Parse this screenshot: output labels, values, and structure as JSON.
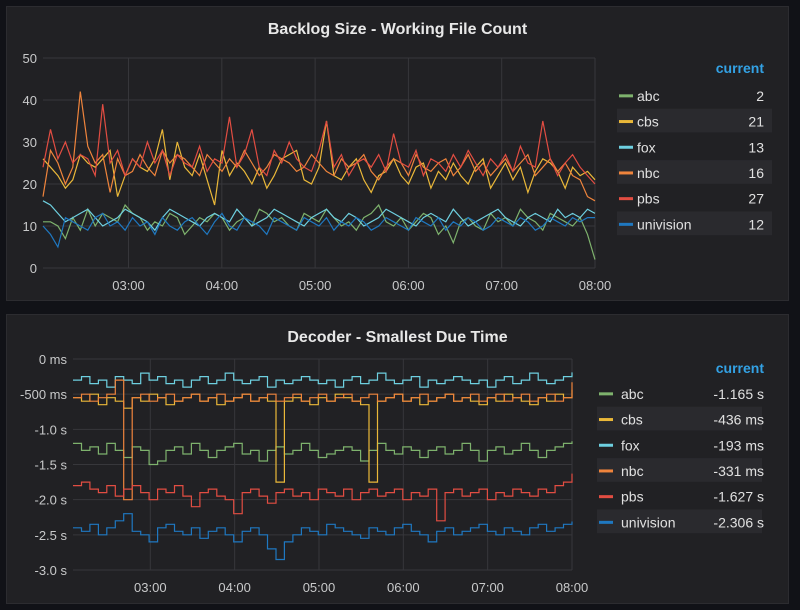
{
  "legend_header": "current",
  "colors": {
    "abc": "#7eb26d",
    "cbs": "#eab839",
    "fox": "#6ed0e0",
    "nbc": "#ef843c",
    "pbs": "#e24d42",
    "univision": "#1f78c1"
  },
  "chart_data": [
    {
      "type": "line",
      "title": "Backlog Size - Working File Count",
      "x_ticks": [
        "03:00",
        "04:00",
        "05:00",
        "06:00",
        "07:00",
        "08:00"
      ],
      "y_ticks": [
        "50",
        "40",
        "30",
        "20",
        "10",
        "0"
      ],
      "ylim": [
        0,
        50
      ],
      "xlim": [
        "02:05",
        "08:00"
      ],
      "grid": true,
      "legend_placement": "right",
      "series": [
        {
          "name": "abc",
          "current": "2",
          "values": [
            11,
            11,
            10,
            7,
            12,
            9,
            14,
            10,
            13,
            12,
            11,
            15,
            13,
            12,
            9,
            11,
            10,
            13,
            12,
            8,
            10,
            12,
            11,
            13,
            12,
            9,
            11,
            12,
            10,
            14,
            13,
            11,
            12,
            10,
            9,
            13,
            12,
            11,
            14,
            12,
            10,
            11,
            9,
            12,
            13,
            15,
            11,
            10,
            12,
            9,
            11,
            13,
            12,
            8,
            10,
            6,
            11,
            12,
            10,
            9,
            13,
            11,
            12,
            10,
            14,
            12,
            11,
            9,
            13,
            12,
            11,
            10,
            12,
            8,
            2
          ]
        },
        {
          "name": "cbs",
          "current": "21",
          "values": [
            26,
            24,
            22,
            19,
            21,
            27,
            25,
            24,
            26,
            28,
            17,
            22,
            26,
            24,
            23,
            26,
            33,
            21,
            30,
            24,
            22,
            27,
            21,
            15,
            28,
            22,
            25,
            23,
            20,
            24,
            19,
            22,
            26,
            27,
            28,
            21,
            20,
            24,
            35,
            22,
            21,
            24,
            26,
            21,
            18,
            22,
            23,
            26,
            22,
            20,
            24,
            25,
            19,
            23,
            21,
            25,
            22,
            20,
            24,
            26,
            19,
            22,
            25,
            21,
            24,
            18,
            23,
            26,
            25,
            23,
            19,
            24,
            22,
            23,
            21
          ]
        },
        {
          "name": "fox",
          "current": "13",
          "values": [
            16,
            15,
            13,
            11,
            12,
            13,
            14,
            12,
            10,
            11,
            12,
            14,
            13,
            12,
            11,
            9,
            12,
            14,
            13,
            12,
            11,
            10,
            12,
            13,
            12,
            11,
            14,
            12,
            10,
            11,
            12,
            14,
            13,
            12,
            11,
            10,
            12,
            13,
            14,
            12,
            11,
            13,
            12,
            10,
            11,
            12,
            14,
            13,
            12,
            11,
            10,
            12,
            13,
            12,
            11,
            14,
            12,
            10,
            11,
            12,
            13,
            14,
            12,
            11,
            10,
            12,
            13,
            12,
            11,
            14,
            12,
            13,
            12,
            14,
            13
          ]
        },
        {
          "name": "nbc",
          "current": "16",
          "values": [
            17,
            28,
            25,
            20,
            24,
            42,
            29,
            25,
            27,
            18,
            26,
            22,
            23,
            27,
            24,
            22,
            28,
            25,
            27,
            26,
            24,
            22,
            27,
            25,
            23,
            26,
            24,
            28,
            25,
            22,
            24,
            27,
            26,
            25,
            23,
            24,
            27,
            25,
            23,
            22,
            26,
            24,
            25,
            27,
            23,
            21,
            24,
            26,
            25,
            22,
            27,
            24,
            23,
            25,
            26,
            22,
            24,
            27,
            23,
            25,
            22,
            24,
            26,
            23,
            25,
            27,
            22,
            24,
            26,
            23,
            25,
            22,
            21,
            17,
            16
          ]
        },
        {
          "name": "pbs",
          "current": "27",
          "values": [
            24,
            33,
            26,
            30,
            25,
            27,
            26,
            22,
            39,
            25,
            28,
            22,
            26,
            24,
            30,
            25,
            28,
            22,
            27,
            25,
            24,
            29,
            23,
            26,
            25,
            36,
            24,
            27,
            33,
            24,
            22,
            28,
            25,
            30,
            26,
            24,
            23,
            28,
            35,
            24,
            27,
            22,
            25,
            26,
            24,
            27,
            23,
            32,
            25,
            24,
            28,
            22,
            26,
            25,
            23,
            27,
            24,
            28,
            25,
            22,
            26,
            24,
            27,
            23,
            29,
            25,
            24,
            35,
            26,
            22,
            25,
            27,
            24,
            22,
            20
          ]
        },
        {
          "name": "univision",
          "current": "12",
          "values": [
            10,
            8,
            5,
            12,
            11,
            10,
            9,
            12,
            13,
            10,
            11,
            9,
            12,
            10,
            11,
            8,
            12,
            10,
            9,
            11,
            12,
            10,
            8,
            11,
            13,
            10,
            9,
            12,
            11,
            10,
            8,
            12,
            11,
            10,
            9,
            12,
            11,
            10,
            12,
            9,
            11,
            10,
            12,
            11,
            9,
            10,
            12,
            11,
            10,
            9,
            12,
            11,
            10,
            12,
            9,
            11,
            10,
            12,
            11,
            9,
            10,
            12,
            11,
            10,
            12,
            11,
            9,
            10,
            12,
            11,
            10,
            12,
            11,
            12,
            12
          ]
        }
      ]
    },
    {
      "type": "line",
      "title": "Decoder - Smallest Due Time",
      "x_ticks": [
        "03:00",
        "04:00",
        "05:00",
        "06:00",
        "07:00",
        "08:00"
      ],
      "y_ticks": [
        "0 ms",
        "-500 ms",
        "-1.0 s",
        "-1.5 s",
        "-2.0 s",
        "-2.5 s",
        "-3.0 s"
      ],
      "ylim": [
        -3.0,
        0
      ],
      "xlim": [
        "02:05",
        "08:00"
      ],
      "grid": true,
      "step": true,
      "legend_placement": "right",
      "series": [
        {
          "name": "abc",
          "current": "-1.165 s",
          "values": [
            -1.2,
            -1.3,
            -1.25,
            -1.35,
            -1.2,
            -1.3,
            -1.4,
            -1.25,
            -1.3,
            -1.5,
            -1.45,
            -1.3,
            -1.25,
            -1.35,
            -1.2,
            -1.3,
            -1.4,
            -1.3,
            -1.25,
            -1.2,
            -1.35,
            -1.3,
            -1.45,
            -1.3,
            -1.25,
            -1.35,
            -1.3,
            -1.2,
            -1.3,
            -1.4,
            -1.35,
            -1.3,
            -1.25,
            -1.3,
            -1.45,
            -1.3,
            -1.2,
            -1.3,
            -1.35,
            -1.25,
            -1.3,
            -1.4,
            -1.3,
            -1.25,
            -1.35,
            -1.3,
            -1.2,
            -1.3,
            -1.45,
            -1.3,
            -1.25,
            -1.35,
            -1.3,
            -1.2,
            -1.3,
            -1.4,
            -1.3,
            -1.25,
            -1.2,
            -1.17
          ]
        },
        {
          "name": "cbs",
          "current": "-436 ms",
          "values": [
            -0.55,
            -0.6,
            -0.5,
            -0.65,
            -0.55,
            -0.6,
            -0.7,
            -0.55,
            -0.6,
            -0.5,
            -0.55,
            -0.65,
            -0.6,
            -0.55,
            -0.5,
            -0.6,
            -0.55,
            -0.65,
            -0.6,
            -0.55,
            -0.5,
            -0.6,
            -0.55,
            -0.6,
            -1.75,
            -0.6,
            -0.55,
            -0.6,
            -0.65,
            -0.55,
            -0.6,
            -0.5,
            -0.55,
            -0.6,
            -0.65,
            -1.75,
            -0.6,
            -0.55,
            -0.5,
            -0.6,
            -0.55,
            -0.65,
            -0.6,
            -0.55,
            -0.5,
            -0.6,
            -0.55,
            -0.6,
            -0.65,
            -0.55,
            -0.6,
            -0.5,
            -0.55,
            -0.6,
            -0.65,
            -0.55,
            -0.6,
            -0.5,
            -0.55,
            -0.44
          ]
        },
        {
          "name": "fox",
          "current": "-193 ms",
          "values": [
            -0.3,
            -0.25,
            -0.35,
            -0.3,
            -0.4,
            -0.25,
            -0.3,
            -0.35,
            -0.2,
            -0.3,
            -0.25,
            -0.35,
            -0.3,
            -0.4,
            -0.3,
            -0.25,
            -0.35,
            -0.3,
            -0.2,
            -0.3,
            -0.35,
            -0.3,
            -0.25,
            -0.4,
            -0.3,
            -0.35,
            -0.3,
            -0.25,
            -0.3,
            -0.35,
            -0.3,
            -0.4,
            -0.3,
            -0.25,
            -0.35,
            -0.3,
            -0.2,
            -0.3,
            -0.35,
            -0.3,
            -0.25,
            -0.4,
            -0.3,
            -0.35,
            -0.3,
            -0.25,
            -0.3,
            -0.35,
            -0.3,
            -0.4,
            -0.3,
            -0.25,
            -0.35,
            -0.3,
            -0.2,
            -0.3,
            -0.35,
            -0.3,
            -0.25,
            -0.19
          ]
        },
        {
          "name": "nbc",
          "current": "-331 ms",
          "values": [
            -0.55,
            -0.5,
            -0.6,
            -0.55,
            -0.5,
            -0.3,
            -2.0,
            -0.55,
            -0.5,
            -0.6,
            -0.55,
            -0.5,
            -0.6,
            -0.55,
            -0.5,
            -0.6,
            -0.55,
            -0.5,
            -0.6,
            -0.55,
            -0.5,
            -0.6,
            -0.55,
            -0.5,
            -0.6,
            -0.55,
            -0.5,
            -0.6,
            -0.55,
            -0.5,
            -0.6,
            -0.55,
            -0.5,
            -0.6,
            -0.55,
            -0.5,
            -0.6,
            -0.55,
            -0.5,
            -0.6,
            -0.55,
            -0.5,
            -0.6,
            -0.55,
            -0.5,
            -0.6,
            -0.55,
            -0.5,
            -0.6,
            -0.55,
            -0.5,
            -0.6,
            -0.55,
            -0.5,
            -0.6,
            -0.55,
            -0.5,
            -0.6,
            -0.55,
            -0.33
          ]
        },
        {
          "name": "pbs",
          "current": "-1.627 s",
          "values": [
            -1.8,
            -1.75,
            -1.85,
            -1.9,
            -1.8,
            -1.95,
            -1.85,
            -1.8,
            -1.9,
            -2.0,
            -1.85,
            -1.9,
            -1.8,
            -1.95,
            -2.1,
            -1.9,
            -1.85,
            -1.95,
            -2.0,
            -2.2,
            -1.9,
            -1.85,
            -1.95,
            -2.05,
            -1.9,
            -1.85,
            -1.95,
            -1.9,
            -2.0,
            -1.85,
            -1.9,
            -1.95,
            -1.85,
            -2.0,
            -1.9,
            -1.85,
            -1.95,
            -1.9,
            -1.85,
            -2.0,
            -1.9,
            -1.95,
            -1.85,
            -2.3,
            -1.9,
            -1.85,
            -1.95,
            -1.9,
            -1.85,
            -2.0,
            -1.9,
            -1.95,
            -1.85,
            -1.9,
            -1.95,
            -1.85,
            -1.9,
            -1.8,
            -1.75,
            -1.63
          ]
        },
        {
          "name": "univision",
          "current": "-2.306 s",
          "values": [
            -2.4,
            -2.45,
            -2.35,
            -2.5,
            -2.4,
            -2.3,
            -2.2,
            -2.45,
            -2.5,
            -2.6,
            -2.4,
            -2.35,
            -2.45,
            -2.5,
            -2.4,
            -2.55,
            -2.45,
            -2.4,
            -2.5,
            -2.6,
            -2.45,
            -2.4,
            -2.5,
            -2.7,
            -2.85,
            -2.6,
            -2.5,
            -2.4,
            -2.45,
            -2.5,
            -2.35,
            -2.4,
            -2.45,
            -2.5,
            -2.55,
            -2.4,
            -2.45,
            -2.5,
            -2.4,
            -2.35,
            -2.45,
            -2.5,
            -2.6,
            -2.45,
            -2.4,
            -2.5,
            -2.45,
            -2.4,
            -2.35,
            -2.45,
            -2.5,
            -2.4,
            -2.45,
            -2.5,
            -2.4,
            -2.35,
            -2.45,
            -2.4,
            -2.35,
            -2.31
          ]
        }
      ]
    }
  ]
}
